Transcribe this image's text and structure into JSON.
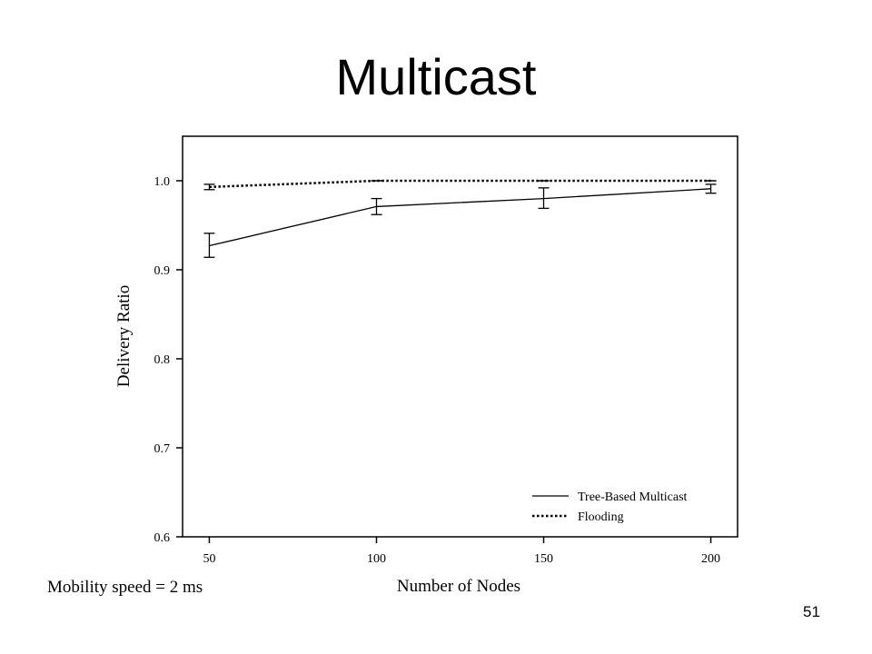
{
  "slide": {
    "title": "Multicast",
    "page_number": "51",
    "footnote": "Mobility speed = 2 ms"
  },
  "chart_data": {
    "type": "line",
    "title": "",
    "xlabel": "Number of Nodes",
    "ylabel": "Delivery Ratio",
    "x": [
      50,
      100,
      150,
      200
    ],
    "xticks": [
      "50",
      "100",
      "150",
      "200"
    ],
    "yticks": [
      "0.6",
      "0.7",
      "0.8",
      "0.9",
      "1.0"
    ],
    "xlim": [
      42,
      208
    ],
    "ylim": [
      0.6,
      1.05
    ],
    "grid": false,
    "legend_position": "bottom-right",
    "series": [
      {
        "name": "Tree-Based Multicast",
        "style": "solid",
        "values": [
          0.927,
          0.971,
          0.98,
          0.991
        ],
        "err_low": [
          0.914,
          0.962,
          0.969,
          0.986
        ],
        "err_high": [
          0.941,
          0.98,
          0.992,
          0.996
        ]
      },
      {
        "name": "Flooding",
        "style": "dotted",
        "values": [
          0.993,
          1.0,
          1.0,
          1.0
        ],
        "err_low": [
          0.99,
          1.0,
          1.0,
          1.0
        ],
        "err_high": [
          0.996,
          1.0,
          1.0,
          1.0
        ]
      }
    ]
  }
}
